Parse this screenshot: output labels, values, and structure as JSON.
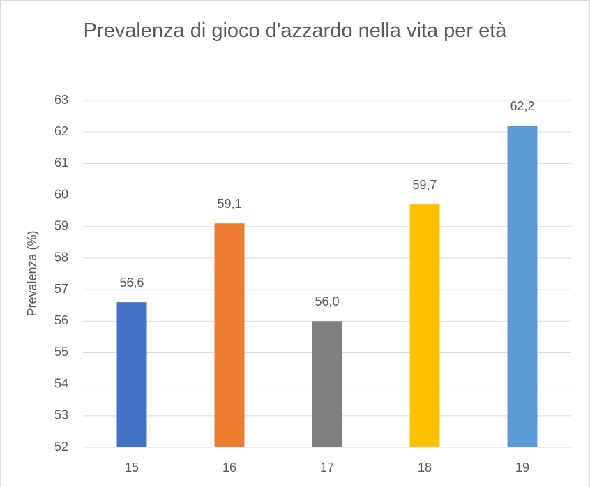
{
  "chart_data": {
    "type": "bar",
    "title": "Prevalenza di gioco d'azzardo nella vita per età",
    "y_label": "Prevalenza (%)",
    "categories": [
      "15",
      "16",
      "17",
      "18",
      "19"
    ],
    "values": [
      56.6,
      59.1,
      56.0,
      59.7,
      62.2
    ],
    "value_labels": [
      "56,6",
      "59,1",
      "56,0",
      "59,7",
      "62,2"
    ],
    "colors": [
      "#4472c4",
      "#ed7d31",
      "#7f7f7f",
      "#ffc000",
      "#5b9bd5"
    ],
    "ylim": [
      52,
      63
    ],
    "yticks": [
      52,
      53,
      54,
      55,
      56,
      57,
      58,
      59,
      60,
      61,
      62,
      63
    ],
    "grid": true
  }
}
